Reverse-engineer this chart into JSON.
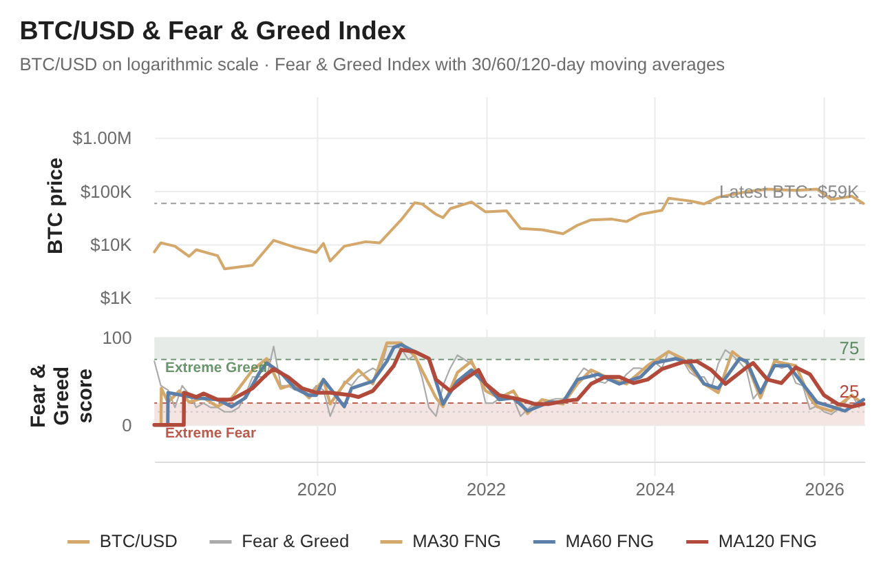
{
  "chart_data": [
    {
      "type": "line",
      "title": "BTC/USD & Fear & Greed Index",
      "subtitle": "BTC/USD on logarithmic scale · Fear & Greed Index with 30/60/120-day moving averages",
      "ylabel": "BTC price",
      "log": true,
      "xlim": [
        "2018-02-01",
        "2026-06-25"
      ],
      "xticks": [
        "2020",
        "2022",
        "2024",
        "2026"
      ],
      "ylim": [
        500,
        6000000
      ],
      "yticks": [
        {
          "value": 1000,
          "label": "$1K"
        },
        {
          "value": 10000,
          "label": "$10K"
        },
        {
          "value": 100000,
          "label": "$100K"
        },
        {
          "value": 1000000,
          "label": "$1.00M"
        }
      ],
      "grid": true,
      "legend": "bottom",
      "tick_labels": "y",
      "ref_lines": [
        {
          "axis": "y",
          "value": 59000,
          "label": "Latest BTC: $59K",
          "color": "#8a8a8a",
          "line_style": "dashed"
        }
      ],
      "series": [
        {
          "name": "BTC/USD",
          "color": "#d4a76a",
          "x": [
            "2018-02-01",
            "2018-03",
            "2018-05",
            "2018-07",
            "2018-08",
            "2018-11",
            "2018-12",
            "2019-04",
            "2019-07",
            "2019-10",
            "2020-01",
            "2020-02",
            "2020-03",
            "2020-05",
            "2020-08",
            "2020-10",
            "2021-01",
            "2021-03",
            "2021-04",
            "2021-06",
            "2021-07",
            "2021-08",
            "2021-11",
            "2022-01",
            "2022-04",
            "2022-06",
            "2022-09",
            "2022-12",
            "2023-02",
            "2023-04",
            "2023-07",
            "2023-09",
            "2023-11",
            "2024-02",
            "2024-03",
            "2024-06",
            "2024-08",
            "2024-10",
            "2025-02",
            "2025-05",
            "2025-09",
            "2025-12",
            "2026-02",
            "2026-05",
            "2026-06-20"
          ],
          "values": [
            7300,
            10800,
            9300,
            6000,
            8000,
            6200,
            3500,
            4100,
            12000,
            8900,
            7100,
            10500,
            4900,
            9300,
            11300,
            10800,
            29000,
            61000,
            58000,
            37000,
            32000,
            47000,
            63000,
            41000,
            43000,
            20000,
            19000,
            16000,
            23000,
            29000,
            30000,
            27000,
            37000,
            44000,
            74000,
            66000,
            58000,
            77000,
            98000,
            110000,
            104000,
            110000,
            70000,
            81000,
            59000
          ]
        }
      ]
    },
    {
      "type": "line",
      "ylabel": "Fear & Greed score",
      "xlim": [
        "2018-02-01",
        "2026-06-25"
      ],
      "xticks": [
        "2020",
        "2022",
        "2024",
        "2026"
      ],
      "ylim": [
        -42,
        110
      ],
      "yticks": [
        0,
        100
      ],
      "grid": true,
      "legend": "bottom",
      "bands": [
        {
          "axis": "y",
          "from": 75,
          "to": 100,
          "label": "Extreme Greed",
          "color": "#e6ebe8"
        },
        {
          "axis": "y",
          "from": 0,
          "to": 25,
          "label": "Extreme Fear",
          "color": "#f4e4e2"
        }
      ],
      "ref_lines": [
        {
          "axis": "y",
          "value": 75,
          "label": "75",
          "color": "#5b8a5e",
          "line_style": "dashed"
        },
        {
          "axis": "y",
          "value": 25,
          "label": "25",
          "color": "#b5483a",
          "line_style": "dashed"
        },
        {
          "axis": "y",
          "value": 15,
          "color": "#c4c4c4",
          "line_style": "dotted"
        }
      ],
      "series": [
        {
          "name": "Fear & Greed",
          "color": "#aaaaaa",
          "x": [
            "2018-02",
            "2018-03",
            "2018-04",
            "2018-05",
            "2018-06",
            "2018-07",
            "2018-08",
            "2018-09",
            "2018-10",
            "2018-11",
            "2018-12",
            "2019-01",
            "2019-02",
            "2019-03",
            "2019-04",
            "2019-05",
            "2019-06",
            "2019-07",
            "2019-08",
            "2019-09",
            "2019-10",
            "2019-11",
            "2019-12",
            "2020-01",
            "2020-02",
            "2020-03",
            "2020-04",
            "2020-05",
            "2020-06",
            "2020-07",
            "2020-08",
            "2020-09",
            "2020-10",
            "2020-11",
            "2020-12",
            "2021-01",
            "2021-02",
            "2021-03",
            "2021-04",
            "2021-05",
            "2021-06",
            "2021-07",
            "2021-08",
            "2021-09",
            "2021-10",
            "2021-11",
            "2021-12",
            "2022-01",
            "2022-02",
            "2022-03",
            "2022-04",
            "2022-05",
            "2022-06",
            "2022-07",
            "2022-08",
            "2022-09",
            "2022-10",
            "2022-11",
            "2022-12",
            "2023-01",
            "2023-02",
            "2023-03",
            "2023-04",
            "2023-05",
            "2023-06",
            "2023-07",
            "2023-08",
            "2023-09",
            "2023-10",
            "2023-11",
            "2023-12",
            "2024-01",
            "2024-02",
            "2024-03",
            "2024-04",
            "2024-05",
            "2024-06",
            "2024-07",
            "2024-08",
            "2024-09",
            "2024-10",
            "2024-11",
            "2024-12",
            "2025-01",
            "2025-02",
            "2025-03",
            "2025-04",
            "2025-05",
            "2025-06",
            "2025-07",
            "2025-08",
            "2025-09",
            "2025-10",
            "2025-11",
            "2025-12",
            "2026-01",
            "2026-02",
            "2026-03",
            "2026-04",
            "2026-05",
            "2026-06"
          ],
          "values": [
            73,
            45,
            40,
            20,
            45,
            35,
            20,
            25,
            20,
            20,
            15,
            15,
            20,
            35,
            55,
            55,
            55,
            90,
            45,
            45,
            40,
            40,
            35,
            45,
            40,
            10,
            30,
            50,
            45,
            55,
            60,
            65,
            60,
            90,
            90,
            88,
            75,
            80,
            55,
            20,
            10,
            45,
            65,
            80,
            75,
            70,
            60,
            25,
            25,
            30,
            35,
            30,
            10,
            18,
            25,
            22,
            28,
            30,
            30,
            35,
            55,
            65,
            60,
            50,
            48,
            55,
            48,
            58,
            65,
            65,
            62,
            72,
            65,
            85,
            78,
            74,
            60,
            55,
            55,
            42,
            70,
            86,
            80,
            72,
            62,
            30,
            40,
            50,
            70,
            65,
            68,
            48,
            45,
            18,
            22,
            15,
            12,
            18,
            25,
            35,
            20
          ]
        },
        {
          "name": "MA30 FNG",
          "color": "#d4a76a",
          "x": [
            "2018-02-01",
            "2018-03-02",
            "2018-03-03",
            "2018-04",
            "2018-05-20",
            "2018-07",
            "2018-09",
            "2018-11",
            "2019-01",
            "2019-04",
            "2019-06",
            "2019-08",
            "2019-10",
            "2019-12",
            "2020-02",
            "2020-03",
            "2020-05",
            "2020-07",
            "2020-09",
            "2020-11",
            "2021-01",
            "2021-03",
            "2021-06",
            "2021-07",
            "2021-09",
            "2021-11",
            "2022-01",
            "2022-03",
            "2022-05",
            "2022-07",
            "2022-09",
            "2022-12",
            "2023-02",
            "2023-04",
            "2023-07",
            "2023-09",
            "2023-12",
            "2024-03",
            "2024-05",
            "2024-08",
            "2024-10",
            "2024-12",
            "2025-02",
            "2025-04",
            "2025-06",
            "2025-09",
            "2025-11",
            "2025-12",
            "2026-02",
            "2026-05",
            "2026-06-20"
          ],
          "values": [
            0,
            0,
            42,
            26,
            39,
            26,
            31,
            21,
            31,
            63,
            76,
            42,
            47,
            31,
            52,
            24,
            47,
            63,
            47,
            94,
            94,
            79,
            31,
            21,
            60,
            73,
            39,
            31,
            39,
            13,
            29,
            24,
            47,
            63,
            52,
            47,
            68,
            84,
            76,
            47,
            37,
            84,
            71,
            31,
            73,
            68,
            31,
            21,
            16,
            34,
            24
          ]
        },
        {
          "name": "MA60 FNG",
          "color": "#5b7fa8",
          "x": [
            "2018-02-01",
            "2018-03-31",
            "2018-04-01",
            "2018-06",
            "2018-08",
            "2018-11",
            "2019-01",
            "2019-03",
            "2019-05",
            "2019-06",
            "2019-08",
            "2019-10",
            "2019-12",
            "2020-01",
            "2020-02",
            "2020-05",
            "2020-06",
            "2020-09",
            "2020-11",
            "2020-12",
            "2021-01",
            "2021-03",
            "2021-05",
            "2021-07",
            "2021-09",
            "2021-11",
            "2022-01",
            "2022-03",
            "2022-05",
            "2022-07",
            "2022-10",
            "2022-12",
            "2023-02",
            "2023-05",
            "2023-08",
            "2023-11",
            "2024-01",
            "2024-04",
            "2024-06",
            "2024-08",
            "2024-10",
            "2025-01",
            "2025-02",
            "2025-04",
            "2025-06",
            "2025-08",
            "2025-10",
            "2025-12",
            "2026-02",
            "2026-04",
            "2026-06-20"
          ],
          "values": [
            0,
            0,
            37,
            34,
            31,
            29,
            21,
            31,
            60,
            71,
            60,
            42,
            34,
            34,
            52,
            21,
            42,
            50,
            73,
            89,
            92,
            84,
            76,
            24,
            50,
            63,
            47,
            29,
            31,
            16,
            26,
            26,
            52,
            58,
            47,
            55,
            71,
            76,
            71,
            47,
            42,
            76,
            73,
            37,
            68,
            68,
            47,
            26,
            21,
            16,
            29
          ]
        },
        {
          "name": "MA120 FNG",
          "color": "#b24a3b",
          "x": [
            "2018-02-01",
            "2018-06-08",
            "2018-06-09",
            "2018-08",
            "2018-09",
            "2018-11",
            "2019-01",
            "2019-04",
            "2019-06",
            "2019-07",
            "2019-09",
            "2019-11",
            "2020-01",
            "2020-03",
            "2020-06",
            "2020-07",
            "2020-09",
            "2020-11",
            "2020-12",
            "2021-01",
            "2021-03",
            "2021-05",
            "2021-06",
            "2021-08",
            "2021-10",
            "2021-12",
            "2022-01",
            "2022-03",
            "2022-06",
            "2022-08",
            "2022-10",
            "2022-12",
            "2023-02",
            "2023-04",
            "2023-06",
            "2023-08",
            "2023-10",
            "2023-12",
            "2024-02",
            "2024-05",
            "2024-07",
            "2024-09",
            "2024-11",
            "2025-02",
            "2025-03",
            "2025-05",
            "2025-07",
            "2025-09",
            "2025-11",
            "2026-01",
            "2026-03",
            "2026-05",
            "2026-06-20"
          ],
          "values": [
            0,
            0,
            37,
            32,
            36,
            29,
            29,
            42,
            58,
            64,
            55,
            42,
            37,
            37,
            34,
            32,
            39,
            58,
            68,
            86,
            84,
            76,
            52,
            39,
            52,
            63,
            47,
            34,
            29,
            24,
            24,
            27,
            29,
            47,
            55,
            55,
            48,
            52,
            64,
            72,
            73,
            63,
            47,
            66,
            71,
            52,
            48,
            66,
            58,
            34,
            24,
            21,
            24
          ]
        }
      ]
    }
  ]
}
